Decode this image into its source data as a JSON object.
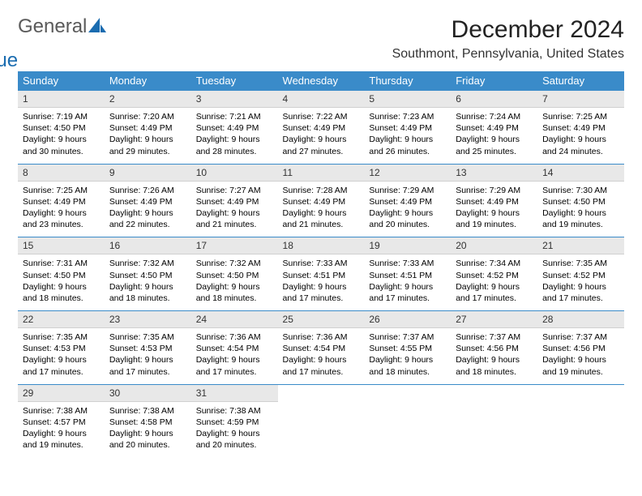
{
  "logo": {
    "text1": "General",
    "text2": "Blue",
    "color1": "#5a5a5a",
    "color2": "#1a6cb0",
    "accent": "#1a6cb0"
  },
  "header": {
    "month_title": "December 2024",
    "location": "Southmont, Pennsylvania, United States"
  },
  "colors": {
    "header_bg": "#3a8bc9",
    "header_fg": "#ffffff",
    "daynum_bg": "#e8e8e8",
    "row_border": "#3a8bc9",
    "page_bg": "#ffffff",
    "text": "#000000"
  },
  "dayNames": [
    "Sunday",
    "Monday",
    "Tuesday",
    "Wednesday",
    "Thursday",
    "Friday",
    "Saturday"
  ],
  "leadingBlanks": 0,
  "days": [
    {
      "n": 1,
      "sunrise": "7:19 AM",
      "sunset": "4:50 PM",
      "daylight": "9 hours and 30 minutes."
    },
    {
      "n": 2,
      "sunrise": "7:20 AM",
      "sunset": "4:49 PM",
      "daylight": "9 hours and 29 minutes."
    },
    {
      "n": 3,
      "sunrise": "7:21 AM",
      "sunset": "4:49 PM",
      "daylight": "9 hours and 28 minutes."
    },
    {
      "n": 4,
      "sunrise": "7:22 AM",
      "sunset": "4:49 PM",
      "daylight": "9 hours and 27 minutes."
    },
    {
      "n": 5,
      "sunrise": "7:23 AM",
      "sunset": "4:49 PM",
      "daylight": "9 hours and 26 minutes."
    },
    {
      "n": 6,
      "sunrise": "7:24 AM",
      "sunset": "4:49 PM",
      "daylight": "9 hours and 25 minutes."
    },
    {
      "n": 7,
      "sunrise": "7:25 AM",
      "sunset": "4:49 PM",
      "daylight": "9 hours and 24 minutes."
    },
    {
      "n": 8,
      "sunrise": "7:25 AM",
      "sunset": "4:49 PM",
      "daylight": "9 hours and 23 minutes."
    },
    {
      "n": 9,
      "sunrise": "7:26 AM",
      "sunset": "4:49 PM",
      "daylight": "9 hours and 22 minutes."
    },
    {
      "n": 10,
      "sunrise": "7:27 AM",
      "sunset": "4:49 PM",
      "daylight": "9 hours and 21 minutes."
    },
    {
      "n": 11,
      "sunrise": "7:28 AM",
      "sunset": "4:49 PM",
      "daylight": "9 hours and 21 minutes."
    },
    {
      "n": 12,
      "sunrise": "7:29 AM",
      "sunset": "4:49 PM",
      "daylight": "9 hours and 20 minutes."
    },
    {
      "n": 13,
      "sunrise": "7:29 AM",
      "sunset": "4:49 PM",
      "daylight": "9 hours and 19 minutes."
    },
    {
      "n": 14,
      "sunrise": "7:30 AM",
      "sunset": "4:50 PM",
      "daylight": "9 hours and 19 minutes."
    },
    {
      "n": 15,
      "sunrise": "7:31 AM",
      "sunset": "4:50 PM",
      "daylight": "9 hours and 18 minutes."
    },
    {
      "n": 16,
      "sunrise": "7:32 AM",
      "sunset": "4:50 PM",
      "daylight": "9 hours and 18 minutes."
    },
    {
      "n": 17,
      "sunrise": "7:32 AM",
      "sunset": "4:50 PM",
      "daylight": "9 hours and 18 minutes."
    },
    {
      "n": 18,
      "sunrise": "7:33 AM",
      "sunset": "4:51 PM",
      "daylight": "9 hours and 17 minutes."
    },
    {
      "n": 19,
      "sunrise": "7:33 AM",
      "sunset": "4:51 PM",
      "daylight": "9 hours and 17 minutes."
    },
    {
      "n": 20,
      "sunrise": "7:34 AM",
      "sunset": "4:52 PM",
      "daylight": "9 hours and 17 minutes."
    },
    {
      "n": 21,
      "sunrise": "7:35 AM",
      "sunset": "4:52 PM",
      "daylight": "9 hours and 17 minutes."
    },
    {
      "n": 22,
      "sunrise": "7:35 AM",
      "sunset": "4:53 PM",
      "daylight": "9 hours and 17 minutes."
    },
    {
      "n": 23,
      "sunrise": "7:35 AM",
      "sunset": "4:53 PM",
      "daylight": "9 hours and 17 minutes."
    },
    {
      "n": 24,
      "sunrise": "7:36 AM",
      "sunset": "4:54 PM",
      "daylight": "9 hours and 17 minutes."
    },
    {
      "n": 25,
      "sunrise": "7:36 AM",
      "sunset": "4:54 PM",
      "daylight": "9 hours and 17 minutes."
    },
    {
      "n": 26,
      "sunrise": "7:37 AM",
      "sunset": "4:55 PM",
      "daylight": "9 hours and 18 minutes."
    },
    {
      "n": 27,
      "sunrise": "7:37 AM",
      "sunset": "4:56 PM",
      "daylight": "9 hours and 18 minutes."
    },
    {
      "n": 28,
      "sunrise": "7:37 AM",
      "sunset": "4:56 PM",
      "daylight": "9 hours and 19 minutes."
    },
    {
      "n": 29,
      "sunrise": "7:38 AM",
      "sunset": "4:57 PM",
      "daylight": "9 hours and 19 minutes."
    },
    {
      "n": 30,
      "sunrise": "7:38 AM",
      "sunset": "4:58 PM",
      "daylight": "9 hours and 20 minutes."
    },
    {
      "n": 31,
      "sunrise": "7:38 AM",
      "sunset": "4:59 PM",
      "daylight": "9 hours and 20 minutes."
    }
  ],
  "labels": {
    "sunrise": "Sunrise:",
    "sunset": "Sunset:",
    "daylight": "Daylight:"
  }
}
